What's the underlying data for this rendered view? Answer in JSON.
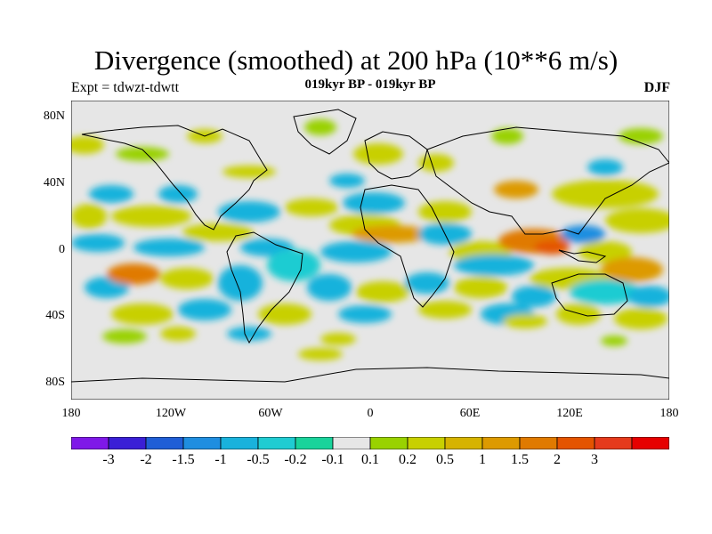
{
  "title": "Divergence (smoothed) at 200 hPa (10**6 m/s)",
  "expt_label": "Expt = tdwzt-tdwtt",
  "period_label": "019kyr BP - 019kyr BP",
  "season_label": "DJF",
  "y_ticks": [
    "80N",
    "40N",
    "0",
    "40S",
    "80S"
  ],
  "x_ticks": [
    "180",
    "120W",
    "60W",
    "0",
    "60E",
    "120E",
    "180"
  ],
  "colorbar": {
    "labels": [
      "-3",
      "-2",
      "-1.5",
      "-1",
      "-0.5",
      "-0.2",
      "-0.1",
      "0.1",
      "0.2",
      "0.5",
      "1",
      "1.5",
      "2",
      "3"
    ],
    "colors": [
      "#7f18e8",
      "#3a1fd6",
      "#1f5ed6",
      "#1f8ee0",
      "#19b2dc",
      "#1fccd2",
      "#19d39b",
      "#e6e6e6",
      "#99d200",
      "#c8d000",
      "#d6b300",
      "#dd9a00",
      "#e07a00",
      "#e45400",
      "#e53a1c",
      "#e60000"
    ]
  }
}
